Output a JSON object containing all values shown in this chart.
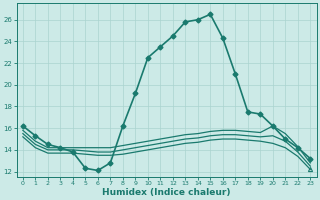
{
  "title": "",
  "xlabel": "Humidex (Indice chaleur)",
  "ylabel": "",
  "bg_color": "#cceae7",
  "line_color": "#1a7a6e",
  "grid_color": "#aad4d0",
  "xlim": [
    -0.5,
    23.5
  ],
  "ylim": [
    11.5,
    27.5
  ],
  "yticks": [
    12,
    14,
    16,
    18,
    20,
    22,
    24,
    26
  ],
  "xticks": [
    0,
    1,
    2,
    3,
    4,
    5,
    6,
    7,
    8,
    9,
    10,
    11,
    12,
    13,
    14,
    15,
    16,
    17,
    18,
    19,
    20,
    21,
    22,
    23
  ],
  "series": [
    {
      "x": [
        0,
        1,
        2,
        3,
        4,
        5,
        6,
        7,
        8,
        9,
        10,
        11,
        12,
        13,
        14,
        15,
        16,
        17,
        18,
        19,
        20,
        21,
        22,
        23
      ],
      "y": [
        16.2,
        15.3,
        14.5,
        14.2,
        13.8,
        12.3,
        12.1,
        12.8,
        16.2,
        19.2,
        22.5,
        23.5,
        24.5,
        25.8,
        26.0,
        26.5,
        24.3,
        21.0,
        17.5,
        17.3,
        16.2,
        15.0,
        14.2,
        13.2
      ],
      "marker": "D",
      "markersize": 2.5,
      "linewidth": 1.2
    },
    {
      "x": [
        0,
        1,
        2,
        3,
        4,
        5,
        6,
        7,
        8,
        9,
        10,
        11,
        12,
        13,
        14,
        15,
        16,
        17,
        18,
        19,
        20,
        21,
        22,
        23
      ],
      "y": [
        15.8,
        14.8,
        14.2,
        14.2,
        14.2,
        14.2,
        14.2,
        14.2,
        14.4,
        14.6,
        14.8,
        15.0,
        15.2,
        15.4,
        15.5,
        15.7,
        15.8,
        15.8,
        15.7,
        15.6,
        16.2,
        15.5,
        14.3,
        12.8
      ],
      "marker": "None",
      "markersize": 0,
      "linewidth": 0.9
    },
    {
      "x": [
        0,
        1,
        2,
        3,
        4,
        5,
        6,
        7,
        8,
        9,
        10,
        11,
        12,
        13,
        14,
        15,
        16,
        17,
        18,
        19,
        20,
        21,
        22,
        23
      ],
      "y": [
        15.5,
        14.5,
        14.0,
        14.0,
        14.0,
        13.9,
        13.8,
        13.8,
        14.0,
        14.2,
        14.4,
        14.6,
        14.8,
        15.0,
        15.1,
        15.3,
        15.4,
        15.4,
        15.3,
        15.2,
        15.3,
        14.8,
        13.8,
        12.5
      ],
      "marker": "None",
      "markersize": 0,
      "linewidth": 0.9
    },
    {
      "x": [
        0,
        1,
        2,
        3,
        4,
        5,
        6,
        7,
        8,
        9,
        10,
        11,
        12,
        13,
        14,
        15,
        16,
        17,
        18,
        19,
        20,
        21,
        22,
        23
      ],
      "y": [
        15.2,
        14.2,
        13.7,
        13.7,
        13.7,
        13.6,
        13.5,
        13.5,
        13.6,
        13.8,
        14.0,
        14.2,
        14.4,
        14.6,
        14.7,
        14.9,
        15.0,
        15.0,
        14.9,
        14.8,
        14.6,
        14.2,
        13.4,
        12.2
      ],
      "marker": "^",
      "markersize": 3,
      "linewidth": 0.9,
      "markevery_last": true
    }
  ]
}
